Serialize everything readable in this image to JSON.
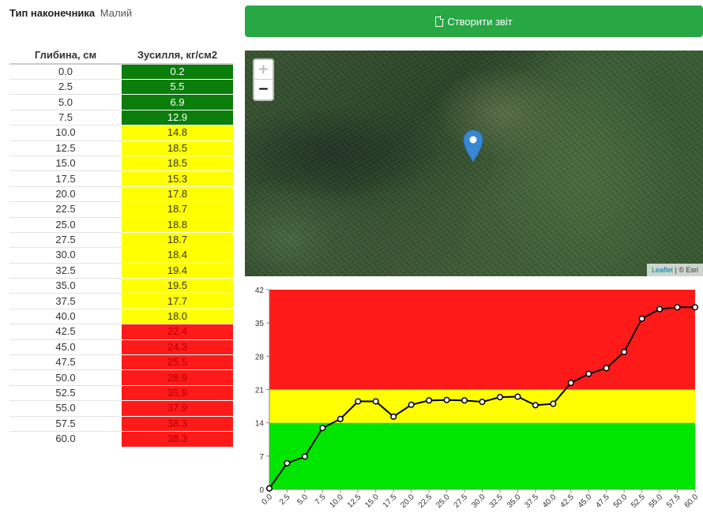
{
  "tip": {
    "label": "Тип наконечника",
    "value": "Малий"
  },
  "table": {
    "headers": {
      "depth": "Глибина, см",
      "force": "Зусилля, кг/см2"
    },
    "rows": [
      {
        "depth": "0.0",
        "force": "0.2",
        "zone": "green"
      },
      {
        "depth": "2.5",
        "force": "5.5",
        "zone": "green"
      },
      {
        "depth": "5.0",
        "force": "6.9",
        "zone": "green"
      },
      {
        "depth": "7.5",
        "force": "12.9",
        "zone": "green"
      },
      {
        "depth": "10.0",
        "force": "14.8",
        "zone": "yellow"
      },
      {
        "depth": "12.5",
        "force": "18.5",
        "zone": "yellow"
      },
      {
        "depth": "15.0",
        "force": "18.5",
        "zone": "yellow"
      },
      {
        "depth": "17.5",
        "force": "15.3",
        "zone": "yellow"
      },
      {
        "depth": "20.0",
        "force": "17.8",
        "zone": "yellow"
      },
      {
        "depth": "22.5",
        "force": "18.7",
        "zone": "yellow"
      },
      {
        "depth": "25.0",
        "force": "18.8",
        "zone": "yellow"
      },
      {
        "depth": "27.5",
        "force": "18.7",
        "zone": "yellow"
      },
      {
        "depth": "30.0",
        "force": "18.4",
        "zone": "yellow"
      },
      {
        "depth": "32.5",
        "force": "19.4",
        "zone": "yellow"
      },
      {
        "depth": "35.0",
        "force": "19.5",
        "zone": "yellow"
      },
      {
        "depth": "37.5",
        "force": "17.7",
        "zone": "yellow"
      },
      {
        "depth": "40.0",
        "force": "18.0",
        "zone": "yellow"
      },
      {
        "depth": "42.5",
        "force": "22.4",
        "zone": "red"
      },
      {
        "depth": "45.0",
        "force": "24.3",
        "zone": "red"
      },
      {
        "depth": "47.5",
        "force": "25.5",
        "zone": "red"
      },
      {
        "depth": "50.0",
        "force": "28.9",
        "zone": "red"
      },
      {
        "depth": "52.5",
        "force": "35.9",
        "zone": "red"
      },
      {
        "depth": "55.0",
        "force": "37.9",
        "zone": "red"
      },
      {
        "depth": "57.5",
        "force": "38.3",
        "zone": "red"
      },
      {
        "depth": "60.0",
        "force": "38.3",
        "zone": "red"
      }
    ]
  },
  "toolbar": {
    "report_label": "Створити звіт",
    "report_icon": "file-icon"
  },
  "map": {
    "zoom_in": "+",
    "zoom_out": "−",
    "attribution_link": "Leaflet",
    "attribution_text": " | © Esri",
    "marker_icon": "map-pin-icon"
  },
  "colors": {
    "green_zone": "#00e600",
    "yellow_zone": "#ffff00",
    "red_zone": "#ff1a1a",
    "table_green": "#0a7d0a",
    "button": "#28a745"
  },
  "chart_data": {
    "type": "line",
    "x": [
      0.0,
      2.5,
      5.0,
      7.5,
      10.0,
      12.5,
      15.0,
      17.5,
      20.0,
      22.5,
      25.0,
      27.5,
      30.0,
      32.5,
      35.0,
      37.5,
      40.0,
      42.5,
      45.0,
      47.5,
      50.0,
      52.5,
      55.0,
      57.5,
      60.0
    ],
    "x_tick_labels": [
      "0.0",
      "2.5",
      "5.0",
      "7.5",
      "10.0",
      "12.5",
      "15.0",
      "17.5",
      "20.0",
      "22.5",
      "25.0",
      "27.5",
      "30.0",
      "32.5",
      "35.0",
      "37.5",
      "40.0",
      "42.5",
      "45.0",
      "47.5",
      "50.0",
      "52.5",
      "55.0",
      "57.5",
      "60.0"
    ],
    "series": [
      {
        "values": [
          0.2,
          5.5,
          6.9,
          12.9,
          14.8,
          18.5,
          18.5,
          15.3,
          17.8,
          18.7,
          18.8,
          18.7,
          18.4,
          19.4,
          19.5,
          17.7,
          18.0,
          22.4,
          24.3,
          25.5,
          28.9,
          35.9,
          37.9,
          38.3,
          38.3
        ]
      }
    ],
    "y_ticks": [
      0,
      7,
      14,
      21,
      28,
      35,
      42
    ],
    "ylim": [
      0,
      42
    ],
    "bands": [
      {
        "from": 0,
        "to": 14,
        "color": "#00e600"
      },
      {
        "from": 14,
        "to": 21,
        "color": "#ffff00"
      },
      {
        "from": 21,
        "to": 42,
        "color": "#ff1a1a"
      }
    ],
    "title": "",
    "xlabel": "",
    "ylabel": "",
    "grid": false
  }
}
